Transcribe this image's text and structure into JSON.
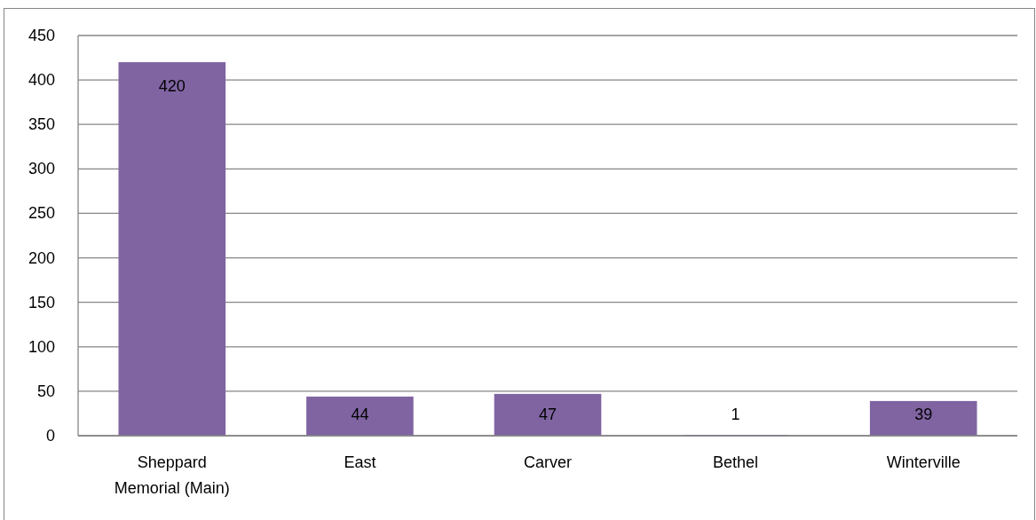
{
  "chart_data": {
    "type": "bar",
    "categories": [
      "Sheppard Memorial (Main)",
      "East",
      "Carver",
      "Bethel",
      "Winterville"
    ],
    "values": [
      420,
      44,
      47,
      1,
      39
    ],
    "color": "#8064a2",
    "ylim": [
      0,
      450
    ],
    "yticks": [
      0,
      50,
      100,
      150,
      200,
      250,
      300,
      350,
      400,
      450
    ],
    "grid": "y",
    "data_labels": true
  }
}
